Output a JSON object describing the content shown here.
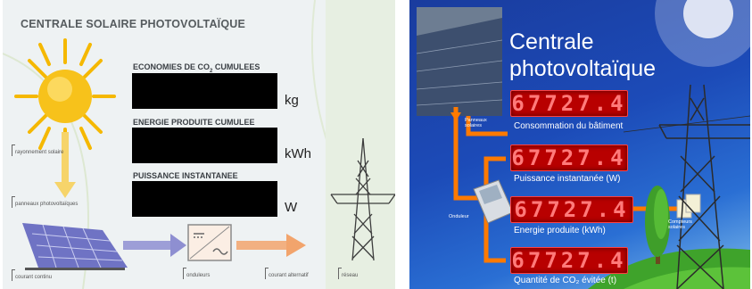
{
  "left_panel": {
    "title": "CENTRALE SOLAIRE PHOTOVOLTAÏQUE",
    "displays": [
      {
        "label_main": "ECONOMIES DE CO",
        "label_sub": "2",
        "label_rest": " CUMULEES",
        "unit": "kg"
      },
      {
        "label_main": "ENERGIE PRODUITE CUMULEE",
        "label_sub": "",
        "label_rest": "",
        "unit": "kWh"
      },
      {
        "label_main": "PUISSANCE INSTANTANEE",
        "label_sub": "",
        "label_rest": "",
        "unit": "W"
      }
    ],
    "diagram_labels": {
      "sun": "rayonnement solaire",
      "panels": "panneaux photovoltaïques",
      "dc": "courant continu",
      "inverter": "onduleurs",
      "ac": "courant alternatif",
      "grid": "réseau"
    },
    "colors": {
      "sun": "#f7c21b",
      "arrow_dc": "#8e8fd1",
      "arrow_ac": "#f2a46c",
      "display": "#000000"
    }
  },
  "right_panel": {
    "title_line1": "Centrale",
    "title_line2": "photovoltaïque",
    "counters": [
      {
        "value": "67727.4",
        "label": "Consommation du bâtiment"
      },
      {
        "value": "67727.4",
        "label": "Puissance instantanée (W)"
      },
      {
        "value": "67727.4",
        "label": "Energie produite (kWh)"
      },
      {
        "value": "67727.4",
        "label": "Quantité de CO₂ évitée (t)"
      }
    ],
    "diagram_labels": {
      "panels": "Panneaux solaires",
      "inverter": "Onduleur",
      "meters": "Compteurs solaires"
    },
    "colors": {
      "led": "#b80000",
      "wire": "#ff7a00",
      "sky": "#1c4bb8"
    }
  }
}
